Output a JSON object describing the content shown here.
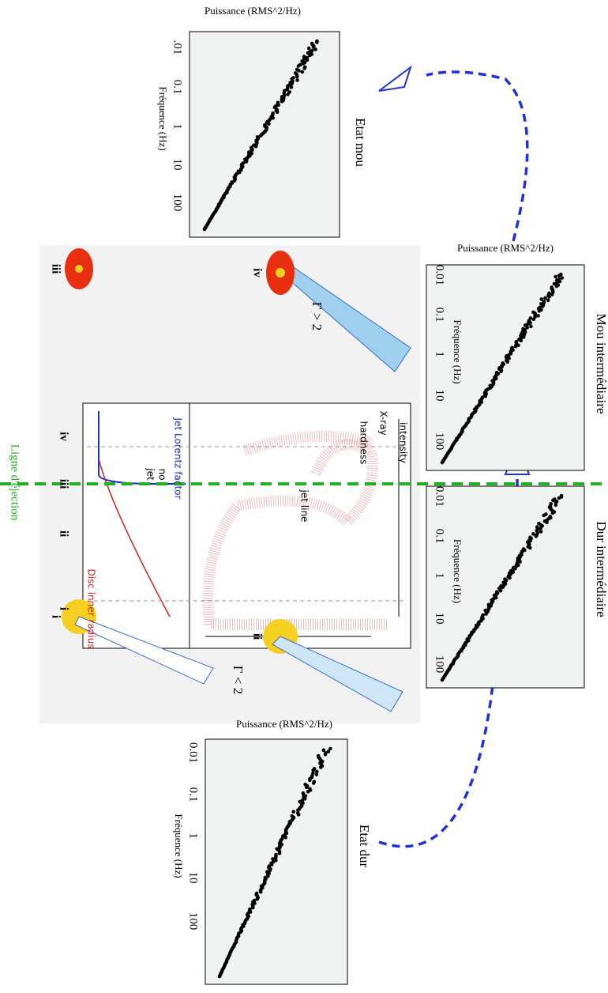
{
  "panels": [
    {
      "title": "Etat mou",
      "y_label": "Puissance (RMS^2/Hz)",
      "x_label": "Fréquence (Hz)",
      "ticks": [
        ".01",
        "0.1",
        "1",
        "10",
        "100"
      ]
    },
    {
      "title": "Mou intermédiaire",
      "y_label": "Puissance (RMS^2/Hz)",
      "x_label": "Fréquence (Hz)",
      "ticks": [
        "0.01",
        "0.1",
        "1",
        "10",
        "100"
      ]
    },
    {
      "title": "Dur intermédiaire",
      "x_label": "Fréquence (Hz)",
      "ticks": [
        "0.01",
        "0.1",
        "1",
        "10",
        "100"
      ]
    },
    {
      "title": "Etat dur",
      "y_label": "Puissance (RMS^2/Hz)",
      "x_label": "Fréquence (Hz)",
      "ticks": [
        "0.01",
        "0.1",
        "1",
        "10",
        "100"
      ]
    }
  ],
  "center": {
    "phases": [
      "iv",
      "iii",
      "ii",
      "i"
    ],
    "disc_labels": [
      "iv",
      "iii",
      "ii",
      "i"
    ],
    "gamma_high": "Γ > 2",
    "gamma_low": "Γ < 2",
    "lorentz": "Jet Lorentz factor",
    "disc_radius": "Disc inner radius",
    "no": "no",
    "jet": "jet",
    "jet_line": "jet line",
    "intensity": "intensity",
    "xray": "X-ray",
    "hardness": "hardness"
  },
  "ejection_line": "Ligne d'éjection"
}
